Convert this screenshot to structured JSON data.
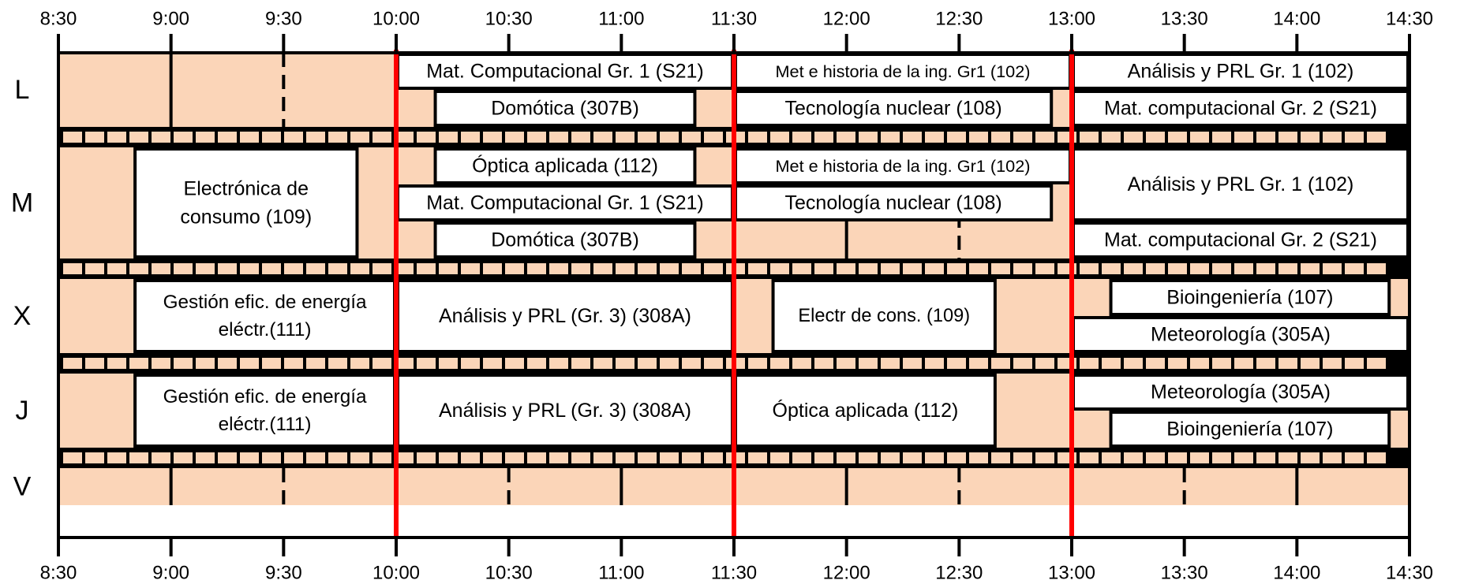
{
  "time_ticks": [
    "8:30",
    "9:00",
    "9:30",
    "10:00",
    "10:30",
    "11:00",
    "11:30",
    "12:00",
    "12:30",
    "13:00",
    "13:30",
    "14:00",
    "14:30"
  ],
  "days": [
    {
      "key": "L",
      "label": "L",
      "lanes": 2
    },
    {
      "key": "M",
      "label": "M",
      "lanes": 3
    },
    {
      "key": "X",
      "label": "X",
      "lanes": 2
    },
    {
      "key": "J",
      "label": "J",
      "lanes": 2
    },
    {
      "key": "V",
      "label": "V",
      "lanes": 1
    }
  ],
  "red_lines": [
    "10:00",
    "11:30",
    "13:00"
  ],
  "colors": {
    "background": "#FBD5B8",
    "event": "#FFFFFF",
    "line": "#000000",
    "accent": "#FF0000"
  },
  "events": [
    {
      "day": "L",
      "lane": 0,
      "span": 1,
      "start": "10:00",
      "end": "11:30",
      "text": [
        "Mat. Computacional Gr. 1 (S21)"
      ]
    },
    {
      "day": "L",
      "lane": 0,
      "span": 1,
      "start": "11:30",
      "end": "13:00",
      "text": [
        "Met e historia de la ing. Gr1 (102)"
      ]
    },
    {
      "day": "L",
      "lane": 0,
      "span": 1,
      "start": "13:00",
      "end": "14:30",
      "text": [
        "Análisis y PRL Gr. 1  (102)"
      ]
    },
    {
      "day": "L",
      "lane": 1,
      "span": 1,
      "start": "10:10",
      "end": "11:20",
      "text": [
        "Domótica (307B)"
      ]
    },
    {
      "day": "L",
      "lane": 1,
      "span": 1,
      "start": "11:30",
      "end": "12:55",
      "text": [
        "Tecnología nuclear (108)"
      ]
    },
    {
      "day": "L",
      "lane": 1,
      "span": 1,
      "start": "13:00",
      "end": "14:30",
      "text": [
        "Mat. computacional Gr. 2 (S21)"
      ]
    },
    {
      "day": "M",
      "lane": 0,
      "span": 3,
      "start": "8:50",
      "end": "9:50",
      "text": [
        "Electrónica de",
        "consumo (109)"
      ]
    },
    {
      "day": "M",
      "lane": 0,
      "span": 1,
      "start": "10:10",
      "end": "11:20",
      "text": [
        "Óptica aplicada (112)"
      ]
    },
    {
      "day": "M",
      "lane": 0,
      "span": 1,
      "start": "11:30",
      "end": "13:00",
      "text": [
        "Met e historia de la ing. Gr1 (102)"
      ]
    },
    {
      "day": "M",
      "lane": 0,
      "span": 2,
      "start": "13:00",
      "end": "14:30",
      "text": [
        "Análisis y PRL Gr. 1  (102)"
      ]
    },
    {
      "day": "M",
      "lane": 1,
      "span": 1,
      "start": "10:00",
      "end": "11:30",
      "text": [
        "Mat. Computacional Gr. 1 (S21)"
      ]
    },
    {
      "day": "M",
      "lane": 1,
      "span": 1,
      "start": "11:30",
      "end": "12:55",
      "text": [
        "Tecnología nuclear (108)"
      ]
    },
    {
      "day": "M",
      "lane": 2,
      "span": 1,
      "start": "10:10",
      "end": "11:20",
      "text": [
        "Domótica (307B)"
      ]
    },
    {
      "day": "M",
      "lane": 2,
      "span": 1,
      "start": "13:00",
      "end": "14:30",
      "text": [
        "Mat. computacional Gr. 2 (S21)"
      ]
    },
    {
      "day": "X",
      "lane": 0,
      "span": 2,
      "start": "8:50",
      "end": "10:00",
      "text": [
        "Gestión efic. de energía",
        "eléctr.(111)"
      ]
    },
    {
      "day": "X",
      "lane": 0,
      "span": 2,
      "start": "10:00",
      "end": "11:30",
      "text": [
        "Análisis y PRL (Gr. 3) (308A)"
      ]
    },
    {
      "day": "X",
      "lane": 0,
      "span": 2,
      "start": "11:40",
      "end": "12:40",
      "text": [
        "Electr de cons. (109)"
      ]
    },
    {
      "day": "X",
      "lane": 0,
      "span": 1,
      "start": "13:10",
      "end": "14:25",
      "text": [
        "Bioingeniería (107)"
      ]
    },
    {
      "day": "X",
      "lane": 1,
      "span": 1,
      "start": "13:00",
      "end": "14:30",
      "text": [
        "Meteorología (305A)"
      ]
    },
    {
      "day": "J",
      "lane": 0,
      "span": 2,
      "start": "8:50",
      "end": "10:00",
      "text": [
        "Gestión efic. de energía",
        "eléctr.(111)"
      ]
    },
    {
      "day": "J",
      "lane": 0,
      "span": 2,
      "start": "10:00",
      "end": "11:30",
      "text": [
        "Análisis y PRL (Gr. 3) (308A)"
      ]
    },
    {
      "day": "J",
      "lane": 0,
      "span": 2,
      "start": "11:30",
      "end": "12:40",
      "text": [
        "Óptica aplicada (112)"
      ]
    },
    {
      "day": "J",
      "lane": 0,
      "span": 1,
      "start": "13:00",
      "end": "14:30",
      "text": [
        "Meteorología (305A)"
      ]
    },
    {
      "day": "J",
      "lane": 1,
      "span": 1,
      "start": "13:10",
      "end": "14:25",
      "text": [
        "Bioingeniería (107)"
      ]
    }
  ]
}
